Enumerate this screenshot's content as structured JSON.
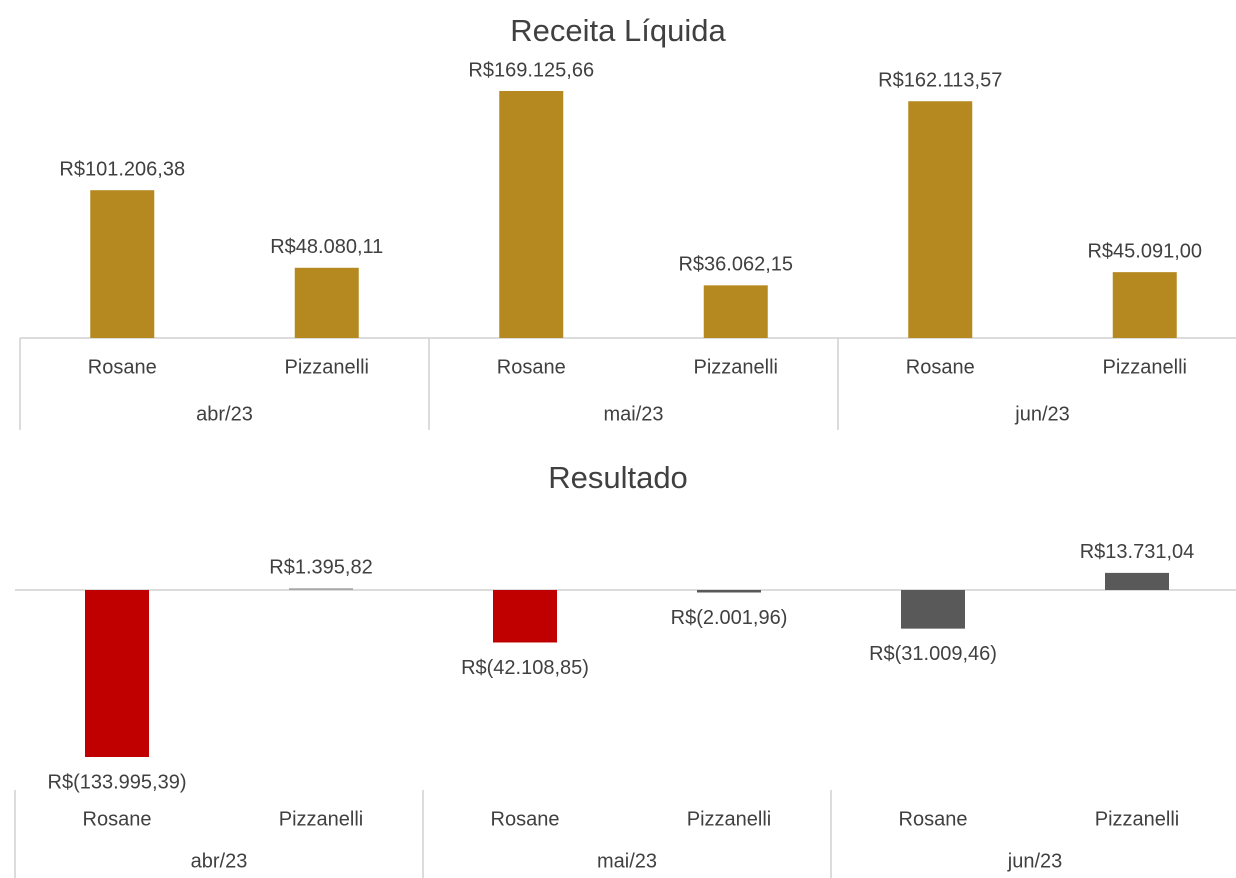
{
  "chart_data": [
    {
      "type": "bar",
      "title": "Receita Líquida",
      "categories": [
        "Rosane",
        "Pizzanelli",
        "Rosane",
        "Pizzanelli",
        "Rosane",
        "Pizzanelli"
      ],
      "groups": [
        "abr/23",
        "mai/23",
        "jun/23"
      ],
      "values": [
        101206.38,
        48080.11,
        169125.66,
        36062.15,
        162113.57,
        45091.0
      ],
      "value_labels": [
        "R$101.206,38",
        "R$48.080,11",
        "R$169.125,66",
        "R$36.062,15",
        "R$162.113,57",
        "R$45.091,00"
      ],
      "colors": [
        "#b5891f",
        "#b5891f",
        "#b5891f",
        "#b5891f",
        "#b5891f",
        "#b5891f"
      ]
    },
    {
      "type": "bar",
      "title": "Resultado",
      "categories": [
        "Rosane",
        "Pizzanelli",
        "Rosane",
        "Pizzanelli",
        "Rosane",
        "Pizzanelli"
      ],
      "groups": [
        "abr/23",
        "mai/23",
        "jun/23"
      ],
      "values": [
        -133995.39,
        1395.82,
        -42108.85,
        -2001.96,
        -31009.46,
        13731.04
      ],
      "value_labels": [
        "R$(133.995,39)",
        "R$1.395,82",
        "R$(42.108,85)",
        "R$(2.001,96)",
        "R$(31.009,46)",
        "R$13.731,04"
      ],
      "colors": [
        "#c00000",
        "#a6a6a6",
        "#c00000",
        "#595959",
        "#595959",
        "#595959"
      ]
    }
  ]
}
